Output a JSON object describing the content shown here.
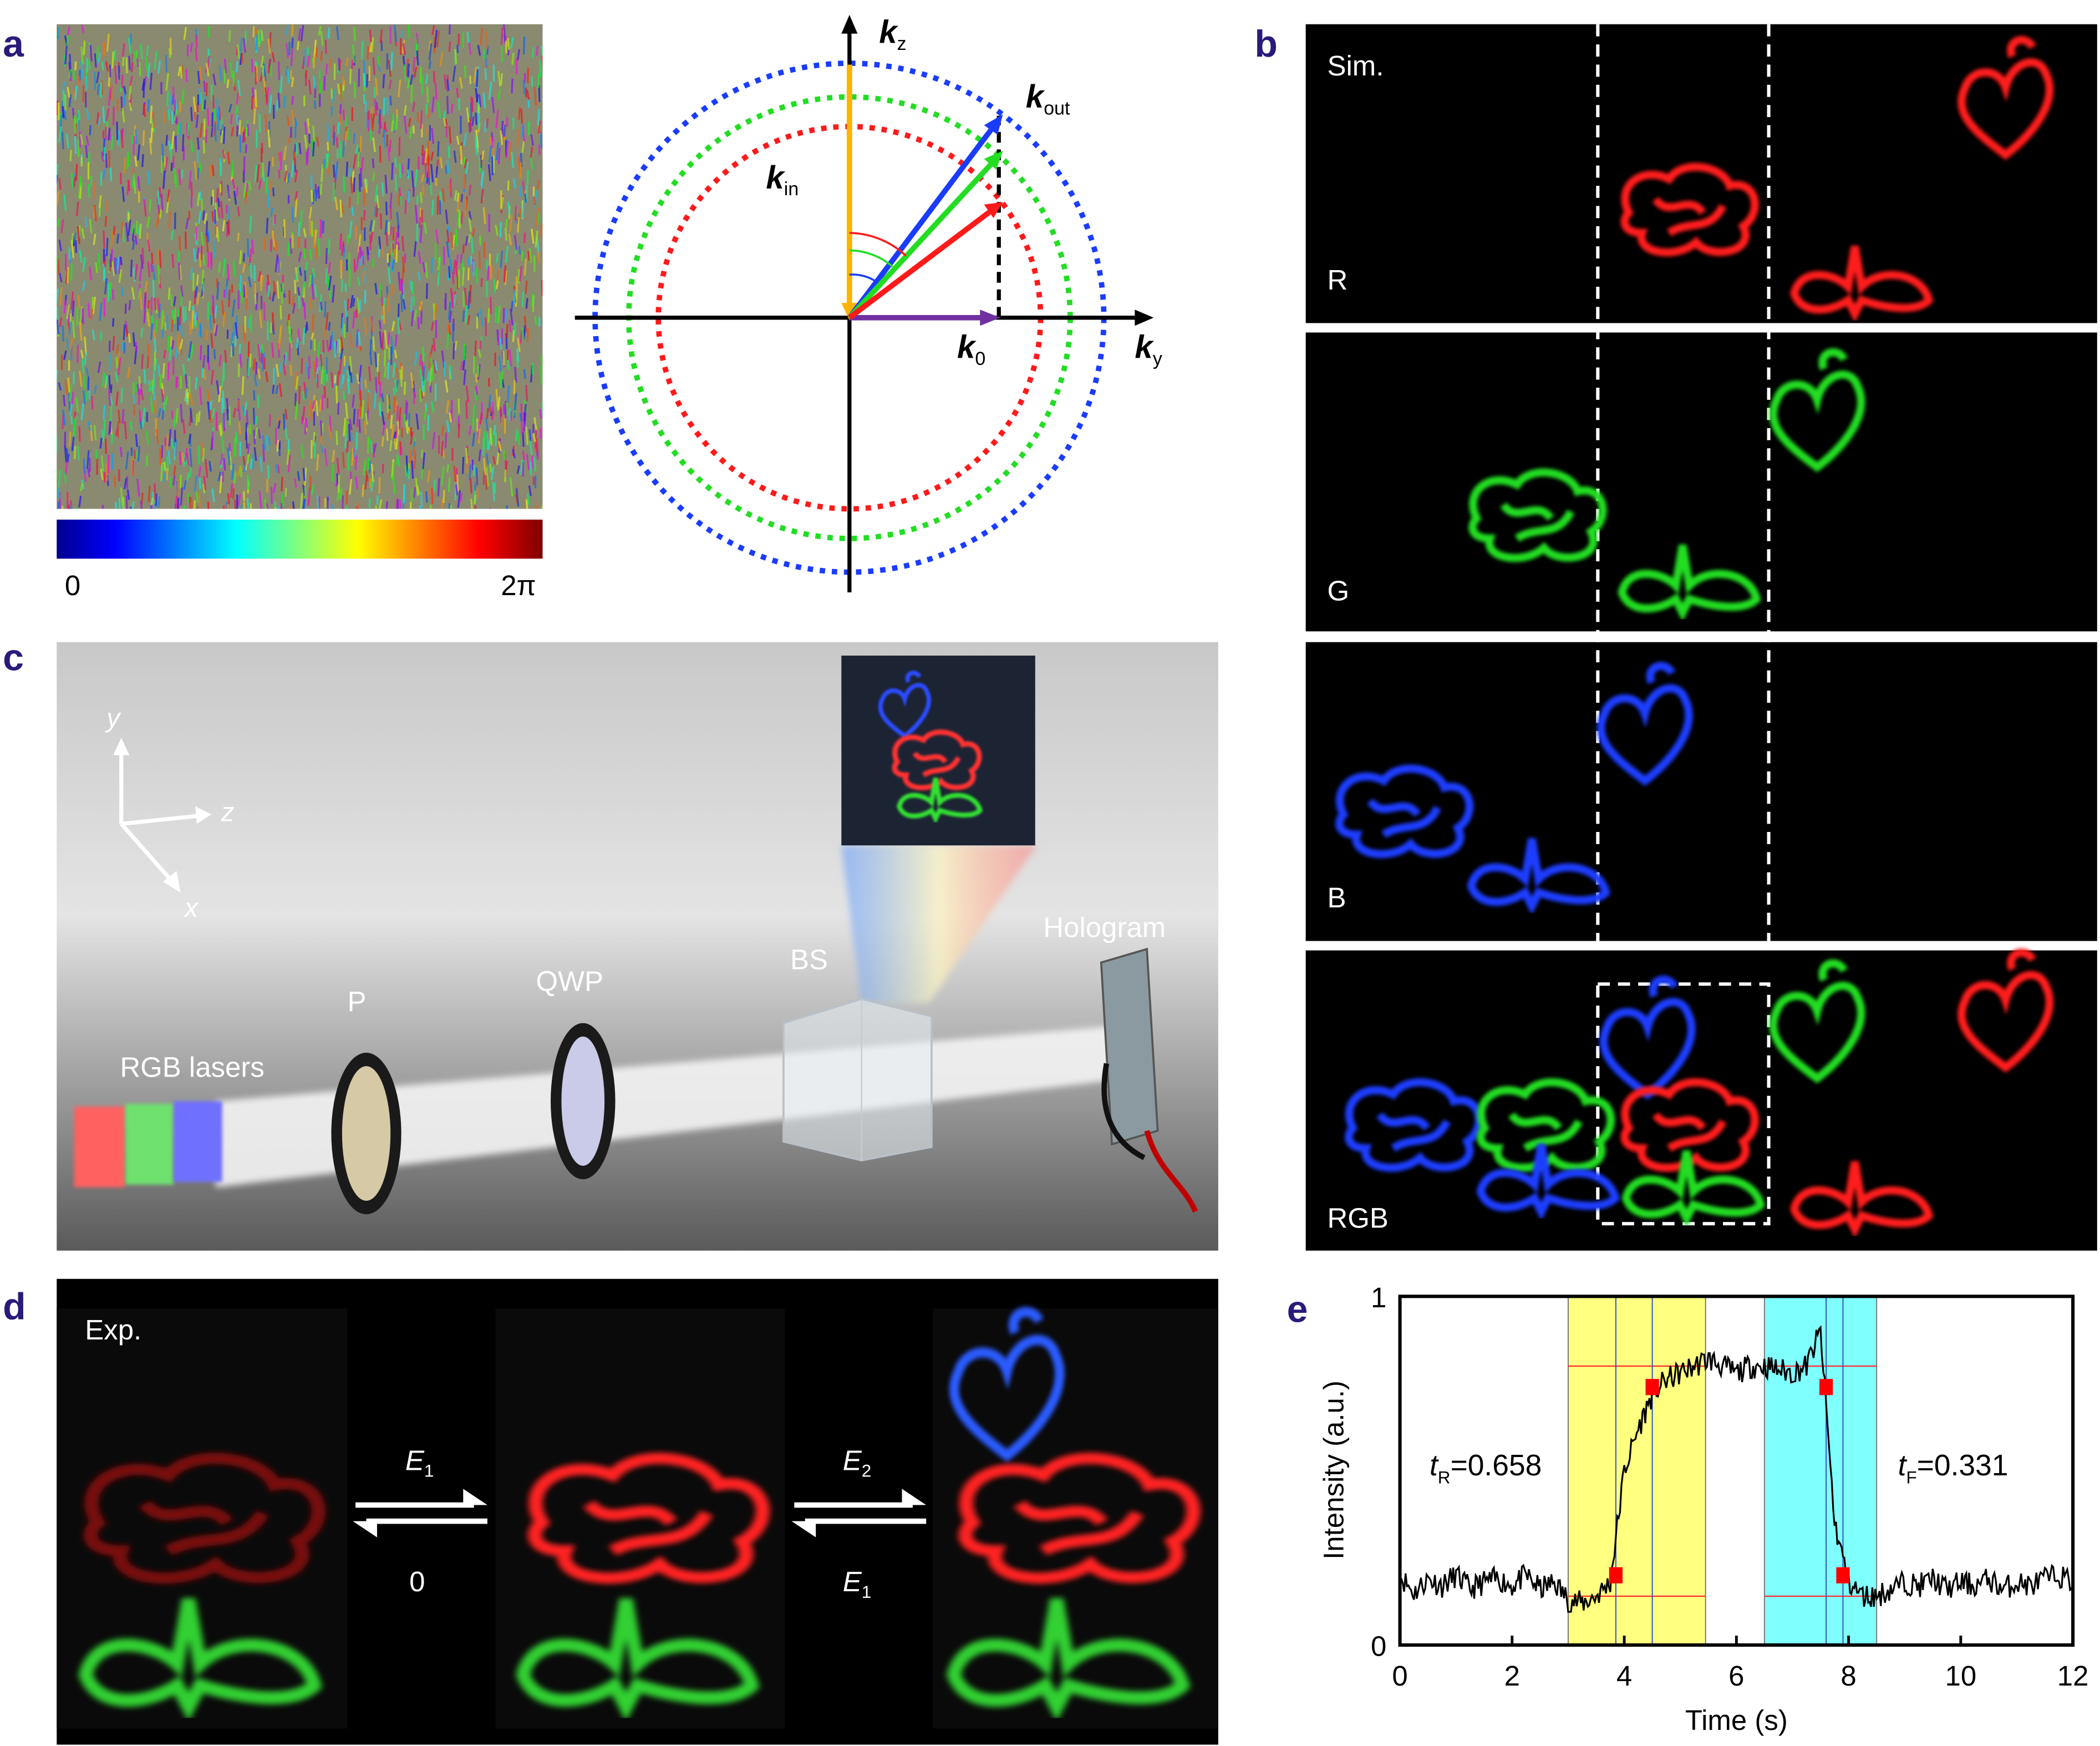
{
  "panels": {
    "a": {
      "label": "a",
      "colorbar": {
        "min_label": "0",
        "max_label": "2π",
        "colormap": "jet"
      },
      "diagram": {
        "kz": {
          "main": "k",
          "sub": "z"
        },
        "kout": {
          "main": "k",
          "sub": "out"
        },
        "kin": {
          "main": "k",
          "sub": "in"
        },
        "k0": {
          "main": "k",
          "sub": "0"
        },
        "ky": {
          "main": "k",
          "sub": "y"
        },
        "colors": {
          "blue": "#1a3cff",
          "green": "#22dd22",
          "red": "#ff1a1a",
          "orange": "#ffb300",
          "purple": "#7030a0"
        }
      }
    },
    "b": {
      "label": "b",
      "sim_label": "Sim.",
      "rows": [
        "R",
        "G",
        "B",
        "RGB"
      ]
    },
    "c": {
      "label": "c",
      "axes": {
        "y": "y",
        "z": "z",
        "x": "x"
      },
      "components": {
        "lasers": "RGB lasers",
        "polarizer": "P",
        "qwp": "QWP",
        "bs": "BS",
        "hologram": "Hologram"
      }
    },
    "d": {
      "label": "d",
      "exp_label": "Exp.",
      "switch1": {
        "top": {
          "main": "E",
          "sub": "1"
        },
        "bottom": "0"
      },
      "switch2": {
        "top": {
          "main": "E",
          "sub": "2"
        },
        "bottom": {
          "main": "E",
          "sub": "1"
        }
      }
    },
    "e": {
      "label": "e"
    }
  },
  "chart_data": {
    "type": "line",
    "xlabel": "Time (s)",
    "ylabel": "Intensity (a.u.)",
    "xlim": [
      0,
      12
    ],
    "ylim": [
      0,
      1
    ],
    "xticks": [
      "0",
      "2",
      "4",
      "6",
      "8",
      "10",
      "12"
    ],
    "yticks": [
      "0",
      "1"
    ],
    "grid": false,
    "x_step": 0.25,
    "values": [
      0.2,
      0.15,
      0.19,
      0.17,
      0.2,
      0.16,
      0.18,
      0.19,
      0.17,
      0.2,
      0.16,
      0.18,
      0.13,
      0.12,
      0.14,
      0.18,
      0.5,
      0.62,
      0.72,
      0.76,
      0.78,
      0.8,
      0.82,
      0.8,
      0.78,
      0.8,
      0.8,
      0.79,
      0.78,
      0.8,
      0.9,
      0.35,
      0.18,
      0.14,
      0.14,
      0.16,
      0.18,
      0.17,
      0.19,
      0.16,
      0.18,
      0.17,
      0.19,
      0.16,
      0.18,
      0.17,
      0.19,
      0.2,
      0.18
    ],
    "rise_band": {
      "x": [
        3.0,
        5.45
      ],
      "color": "#ffff80"
    },
    "fall_band": {
      "x": [
        6.5,
        8.5
      ],
      "color": "#80ffff"
    },
    "rise_markers": [
      [
        3.85,
        0.2
      ],
      [
        4.5,
        0.74
      ]
    ],
    "fall_markers": [
      [
        7.6,
        0.74
      ],
      [
        7.9,
        0.2
      ]
    ],
    "rise_levels": [
      0.14,
      0.8
    ],
    "fall_levels": [
      0.14,
      0.8
    ],
    "annotations": {
      "rise": {
        "var": "t",
        "sub": "R",
        "value": "=0.658"
      },
      "fall": {
        "var": "t",
        "sub": "F",
        "value": "=0.331"
      }
    }
  }
}
